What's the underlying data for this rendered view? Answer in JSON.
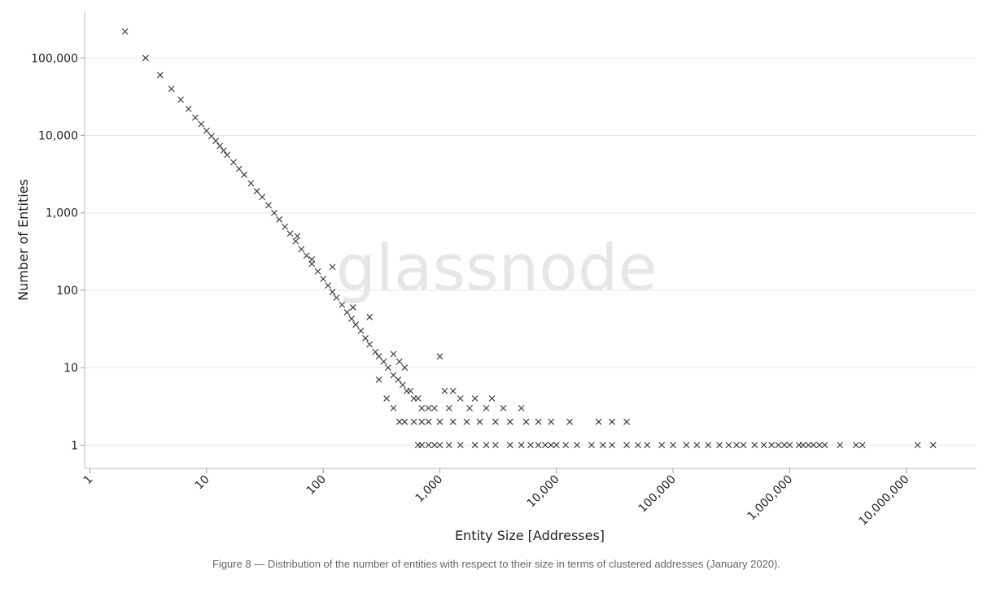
{
  "chart_data": {
    "type": "scatter",
    "watermark": "glassnode",
    "xlabel": "Entity Size [Addresses]",
    "ylabel": "Number of Entities",
    "caption": "Figure 8 — Distribution of the number of entities with respect to their size in terms of clustered addresses (January 2020).",
    "xscale": "log",
    "yscale": "log",
    "grid": true,
    "marker": "x",
    "color": "#333333",
    "xlim": [
      0.9,
      40000000
    ],
    "ylim": [
      0.5,
      400000
    ],
    "xticks": [
      1,
      10,
      100,
      {
        "value": 1000,
        "label": "1,000"
      },
      {
        "value": 10000,
        "label": "10,000"
      },
      {
        "value": 100000,
        "label": "100,000"
      },
      {
        "value": 1000000,
        "label": "1,000,000"
      },
      {
        "value": 10000000,
        "label": "10,000,000"
      }
    ],
    "yticks": [
      1,
      10,
      100,
      {
        "value": 1000,
        "label": "1,000"
      },
      {
        "value": 10000,
        "label": "10,000"
      },
      {
        "value": 100000,
        "label": "100,000"
      }
    ],
    "x": [
      2,
      3,
      4,
      5,
      6,
      7,
      8,
      9,
      10,
      11,
      12,
      13,
      14,
      15,
      17,
      19,
      21,
      24,
      27,
      30,
      34,
      38,
      42,
      47,
      52,
      58,
      65,
      72,
      80,
      90,
      100,
      110,
      120,
      130,
      145,
      160,
      175,
      190,
      210,
      230,
      250,
      280,
      300,
      330,
      360,
      400,
      440,
      480,
      520,
      560,
      600,
      650,
      700,
      800,
      900,
      1000,
      300,
      350,
      400,
      450,
      500,
      600,
      700,
      800,
      1000,
      1300,
      1700,
      2200,
      3000,
      4000,
      5500,
      7000,
      9000,
      13000,
      23000,
      30000,
      40000,
      1200,
      1800,
      2500,
      3500,
      5000,
      1500,
      2000,
      2800,
      1100,
      1300,
      250,
      180,
      400,
      450,
      500,
      120,
      80,
      60,
      650,
      700,
      800,
      900,
      1000,
      1200,
      1500,
      2000,
      2500,
      3000,
      4000,
      5000,
      6000,
      7000,
      8000,
      9000,
      10000,
      12000,
      15000,
      20000,
      25000,
      30000,
      40000,
      50000,
      60000,
      80000,
      100000,
      130000,
      160000,
      200000,
      250000,
      300000,
      350000,
      400000,
      500000,
      600000,
      700000,
      800000,
      900000,
      1000000,
      1200000,
      1300000,
      1450000,
      1600000,
      1800000,
      2000000,
      2700000,
      3700000,
      4200000,
      12500000,
      17000000
    ],
    "values": [
      220000,
      100000,
      60000,
      40000,
      29000,
      22000,
      17000,
      14000,
      11500,
      9800,
      8500,
      7300,
      6400,
      5600,
      4500,
      3700,
      3100,
      2400,
      1900,
      1600,
      1250,
      1000,
      820,
      660,
      540,
      430,
      340,
      280,
      220,
      175,
      140,
      115,
      95,
      80,
      65,
      52,
      43,
      36,
      30,
      24,
      20,
      16,
      14,
      12,
      10,
      8,
      7,
      6,
      5,
      5,
      4,
      4,
      3,
      3,
      3,
      14,
      7,
      4,
      3,
      2,
      2,
      2,
      2,
      2,
      2,
      2,
      2,
      2,
      2,
      2,
      2,
      2,
      2,
      2,
      2,
      2,
      2,
      3,
      3,
      3,
      3,
      3,
      4,
      4,
      4,
      5,
      5,
      45,
      60,
      15,
      12,
      10,
      200,
      250,
      500,
      1,
      1,
      1,
      1,
      1,
      1,
      1,
      1,
      1,
      1,
      1,
      1,
      1,
      1,
      1,
      1,
      1,
      1,
      1,
      1,
      1,
      1,
      1,
      1,
      1,
      1,
      1,
      1,
      1,
      1,
      1,
      1,
      1,
      1,
      1,
      1,
      1,
      1,
      1,
      1,
      1,
      1,
      1,
      1,
      1,
      1,
      1,
      1,
      1,
      1,
      1
    ]
  }
}
